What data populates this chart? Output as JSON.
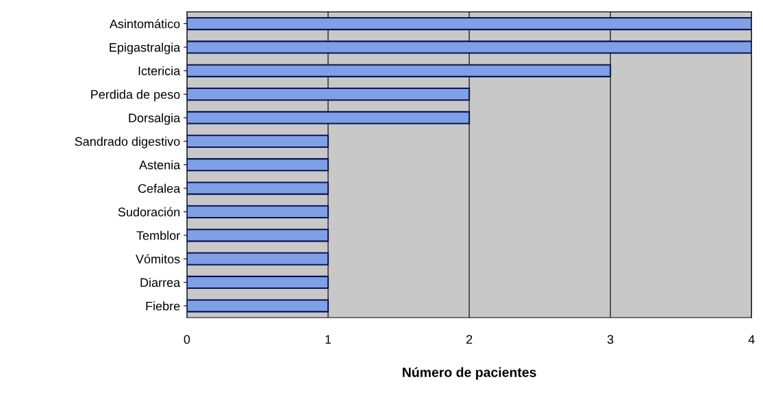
{
  "chart_data": {
    "type": "bar",
    "orientation": "horizontal",
    "xlabel": "Número de pacientes",
    "categories": [
      "Asintomático",
      "Epigastralgia",
      "Ictericia",
      "Perdida de peso",
      "Dorsalgia",
      "Sandrado digestivo",
      "Astenia",
      "Cefalea",
      "Sudoración",
      "Temblor",
      "Vómitos",
      "Diarrea",
      "Fiebre"
    ],
    "values": [
      4,
      4,
      3,
      2,
      2,
      1,
      1,
      1,
      1,
      1,
      1,
      1,
      1
    ],
    "color": "#7f9fe6",
    "xlim": [
      0,
      4
    ],
    "xticks": [
      0,
      1,
      2,
      3,
      4
    ],
    "grid": "x"
  }
}
